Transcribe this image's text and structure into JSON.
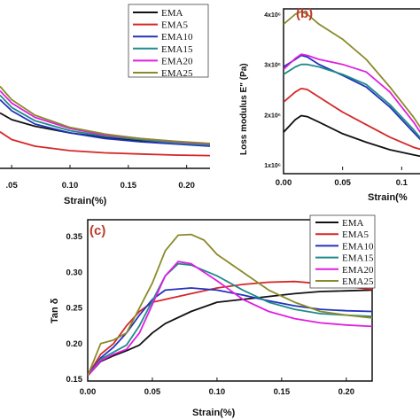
{
  "colors": {
    "EMA": "#111111",
    "EMA5": "#d62728",
    "EMA10": "#2233bb",
    "EMA15": "#1f8a8a",
    "EMA20": "#e01ee0",
    "EMA25": "#8a8a2a"
  },
  "chart_data": [
    {
      "id": "a",
      "type": "line",
      "panel_label": "",
      "title": "",
      "xlabel": "Strain(%)",
      "ylabel": "",
      "xlim": [
        0.04,
        0.22
      ],
      "xticks": [
        ".05",
        "0.10",
        "0.15",
        "0.20"
      ],
      "legend_position": "top-right",
      "series": [
        {
          "name": "EMA",
          "x": [
            0.04,
            0.05,
            0.07,
            0.1,
            0.13,
            0.16,
            0.19,
            0.22
          ],
          "y": [
            0.5,
            0.44,
            0.38,
            0.32,
            0.28,
            0.25,
            0.23,
            0.21
          ]
        },
        {
          "name": "EMA5",
          "x": [
            0.04,
            0.05,
            0.07,
            0.1,
            0.13,
            0.16,
            0.19,
            0.22
          ],
          "y": [
            0.33,
            0.26,
            0.2,
            0.16,
            0.14,
            0.13,
            0.12,
            0.115
          ]
        },
        {
          "name": "EMA10",
          "x": [
            0.04,
            0.05,
            0.07,
            0.1,
            0.13,
            0.16,
            0.19,
            0.22
          ],
          "y": [
            0.62,
            0.52,
            0.4,
            0.32,
            0.27,
            0.24,
            0.22,
            0.2
          ]
        },
        {
          "name": "EMA15",
          "x": [
            0.04,
            0.05,
            0.07,
            0.1,
            0.13,
            0.16,
            0.19,
            0.22
          ],
          "y": [
            0.66,
            0.55,
            0.43,
            0.34,
            0.29,
            0.26,
            0.23,
            0.21
          ]
        },
        {
          "name": "EMA20",
          "x": [
            0.04,
            0.05,
            0.07,
            0.1,
            0.13,
            0.16,
            0.19,
            0.22
          ],
          "y": [
            0.7,
            0.59,
            0.46,
            0.36,
            0.3,
            0.27,
            0.24,
            0.22
          ]
        },
        {
          "name": "EMA25",
          "x": [
            0.04,
            0.05,
            0.07,
            0.1,
            0.13,
            0.16,
            0.19,
            0.22
          ],
          "y": [
            0.74,
            0.62,
            0.48,
            0.37,
            0.31,
            0.27,
            0.245,
            0.225
          ]
        }
      ]
    },
    {
      "id": "b",
      "type": "line",
      "panel_label": "(b)",
      "title": "",
      "xlabel": "Strain(%",
      "ylabel": "Loss modulus E\" (Pa)",
      "xlim": [
        0.0,
        0.12
      ],
      "ylim": [
        1.0,
        4.0
      ],
      "xticks": [
        "0.00",
        "0.05",
        "0.1"
      ],
      "yticks": [
        "1x10⁶",
        "2x10⁶",
        "3x10⁶",
        "4x10⁶"
      ],
      "series": [
        {
          "name": "EMA",
          "x": [
            0.0,
            0.01,
            0.015,
            0.02,
            0.03,
            0.05,
            0.07,
            0.09,
            0.11,
            0.12
          ],
          "y": [
            1.65,
            1.9,
            1.98,
            1.96,
            1.85,
            1.62,
            1.45,
            1.3,
            1.2,
            1.15
          ]
        },
        {
          "name": "EMA5",
          "x": [
            0.0,
            0.01,
            0.015,
            0.02,
            0.03,
            0.05,
            0.07,
            0.09,
            0.11,
            0.12
          ],
          "y": [
            2.25,
            2.45,
            2.52,
            2.5,
            2.35,
            2.05,
            1.8,
            1.55,
            1.35,
            1.28
          ]
        },
        {
          "name": "EMA10",
          "x": [
            0.0,
            0.01,
            0.015,
            0.02,
            0.03,
            0.05,
            0.07,
            0.09,
            0.11,
            0.12
          ],
          "y": [
            2.95,
            3.1,
            3.18,
            3.15,
            3.0,
            2.78,
            2.55,
            2.15,
            1.65,
            1.4
          ]
        },
        {
          "name": "EMA15",
          "x": [
            0.0,
            0.01,
            0.015,
            0.02,
            0.03,
            0.05,
            0.07,
            0.09,
            0.11,
            0.12
          ],
          "y": [
            2.8,
            2.95,
            3.0,
            3.0,
            2.95,
            2.8,
            2.6,
            2.2,
            1.7,
            1.42
          ]
        },
        {
          "name": "EMA20",
          "x": [
            0.0,
            0.01,
            0.015,
            0.02,
            0.03,
            0.05,
            0.07,
            0.09,
            0.11,
            0.12
          ],
          "y": [
            2.9,
            3.12,
            3.2,
            3.18,
            3.1,
            3.0,
            2.85,
            2.45,
            1.85,
            1.5
          ]
        },
        {
          "name": "EMA25",
          "x": [
            0.0,
            0.01,
            0.015,
            0.02,
            0.03,
            0.05,
            0.07,
            0.09,
            0.11,
            0.12
          ],
          "y": [
            3.8,
            4.0,
            4.05,
            4.0,
            3.8,
            3.5,
            3.1,
            2.55,
            1.95,
            1.6
          ]
        }
      ]
    },
    {
      "id": "c",
      "type": "line",
      "panel_label": "(c)",
      "title": "",
      "xlabel": "Strain(%)",
      "ylabel": "Tan δ",
      "xlim": [
        0.0,
        0.22
      ],
      "ylim": [
        0.15,
        0.35
      ],
      "xticks": [
        "0.00",
        "0.05",
        "0.10",
        "0.15",
        "0.20"
      ],
      "yticks": [
        "0.15",
        "0.20",
        "0.25",
        "0.30",
        "0.35"
      ],
      "legend_position": "top-right",
      "series": [
        {
          "name": "EMA",
          "x": [
            0.0,
            0.01,
            0.02,
            0.03,
            0.04,
            0.05,
            0.06,
            0.08,
            0.1,
            0.12,
            0.14,
            0.16,
            0.18,
            0.2,
            0.22
          ],
          "y": [
            0.155,
            0.175,
            0.183,
            0.19,
            0.198,
            0.215,
            0.228,
            0.245,
            0.258,
            0.262,
            0.266,
            0.27,
            0.273,
            0.274,
            0.275
          ]
        },
        {
          "name": "EMA5",
          "x": [
            0.0,
            0.01,
            0.02,
            0.03,
            0.04,
            0.05,
            0.06,
            0.08,
            0.1,
            0.12,
            0.14,
            0.16,
            0.18,
            0.2,
            0.22
          ],
          "y": [
            0.155,
            0.185,
            0.2,
            0.225,
            0.245,
            0.258,
            0.262,
            0.27,
            0.278,
            0.283,
            0.286,
            0.287,
            0.284,
            0.28,
            0.276
          ]
        },
        {
          "name": "EMA10",
          "x": [
            0.0,
            0.01,
            0.02,
            0.03,
            0.04,
            0.05,
            0.06,
            0.08,
            0.1,
            0.12,
            0.14,
            0.16,
            0.18,
            0.2,
            0.22
          ],
          "y": [
            0.155,
            0.18,
            0.195,
            0.215,
            0.24,
            0.262,
            0.275,
            0.278,
            0.275,
            0.268,
            0.26,
            0.253,
            0.248,
            0.246,
            0.245
          ]
        },
        {
          "name": "EMA15",
          "x": [
            0.0,
            0.01,
            0.02,
            0.03,
            0.04,
            0.05,
            0.06,
            0.07,
            0.08,
            0.1,
            0.12,
            0.14,
            0.16,
            0.18,
            0.2,
            0.22
          ],
          "y": [
            0.155,
            0.178,
            0.188,
            0.198,
            0.225,
            0.26,
            0.295,
            0.312,
            0.31,
            0.295,
            0.275,
            0.258,
            0.248,
            0.242,
            0.24,
            0.238
          ]
        },
        {
          "name": "EMA20",
          "x": [
            0.0,
            0.01,
            0.02,
            0.03,
            0.04,
            0.05,
            0.06,
            0.07,
            0.08,
            0.1,
            0.12,
            0.14,
            0.16,
            0.18,
            0.2,
            0.22
          ],
          "y": [
            0.155,
            0.176,
            0.185,
            0.192,
            0.215,
            0.255,
            0.295,
            0.315,
            0.312,
            0.288,
            0.262,
            0.245,
            0.235,
            0.229,
            0.226,
            0.224
          ]
        },
        {
          "name": "EMA25",
          "x": [
            0.0,
            0.01,
            0.02,
            0.03,
            0.04,
            0.05,
            0.06,
            0.07,
            0.08,
            0.09,
            0.1,
            0.12,
            0.14,
            0.16,
            0.18,
            0.2,
            0.22
          ],
          "y": [
            0.155,
            0.2,
            0.205,
            0.215,
            0.25,
            0.285,
            0.33,
            0.352,
            0.353,
            0.345,
            0.325,
            0.3,
            0.275,
            0.258,
            0.245,
            0.24,
            0.236
          ]
        }
      ]
    }
  ]
}
